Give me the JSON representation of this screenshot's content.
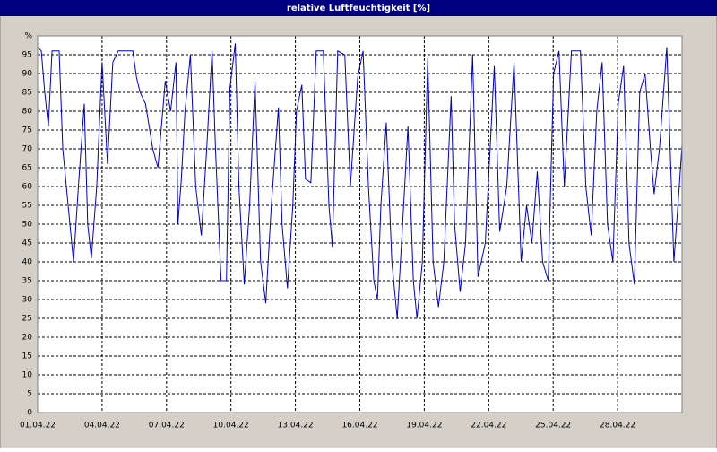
{
  "chart_data": {
    "type": "line",
    "title": "relative Luftfeuchtigkeit [%]",
    "x": [
      0,
      0.17,
      0.33,
      0.5,
      0.67,
      1.0,
      1.17,
      1.42,
      1.67,
      1.92,
      2.17,
      2.33,
      2.5,
      2.75,
      3.0,
      3.25,
      3.5,
      3.75,
      4.43,
      4.6,
      4.77,
      5.02,
      5.36,
      5.6,
      5.94,
      6.19,
      6.44,
      6.53,
      6.69,
      6.86,
      7.11,
      7.36,
      7.62,
      7.87,
      8.12,
      8.28,
      8.54,
      8.79,
      8.95,
      9.2,
      9.37,
      9.62,
      9.87,
      10.12,
      10.38,
      10.62,
      10.88,
      11.21,
      11.38,
      11.63,
      11.88,
      12.05,
      12.3,
      12.47,
      12.72,
      12.97,
      13.3,
      13.56,
      13.72,
      13.97,
      14.3,
      14.56,
      14.9,
      15.15,
      15.4,
      15.65,
      15.82,
      15.98,
      16.23,
      16.49,
      16.74,
      16.99,
      17.24,
      17.49,
      17.66,
      17.91,
      18.16,
      18.41,
      18.66,
      18.91,
      19.25,
      19.41,
      19.67,
      19.92,
      20.25,
      20.5,
      20.84,
      21.26,
      21.51,
      21.84,
      22.18,
      22.51,
      22.76,
      23.01,
      23.26,
      23.51,
      23.77,
      24.02,
      24.27,
      24.52,
      24.85,
      25.27,
      25.52,
      25.77,
      26.03,
      26.28,
      26.53,
      26.78,
      27.03,
      27.28,
      27.53,
      27.78,
      28.03,
      28.28,
      28.53,
      28.7,
      28.95,
      29.29,
      29.62,
      29.87,
      30.0
    ],
    "series": [
      {
        "color": "#0000c0",
        "values": [
          97,
          96,
          85,
          76,
          96,
          96,
          70,
          55,
          40,
          62,
          82,
          50,
          41,
          60,
          93,
          66,
          93,
          96,
          96,
          89,
          85,
          82,
          70,
          65,
          88,
          80,
          93,
          50,
          62,
          80,
          95,
          60,
          47,
          70,
          96,
          70,
          35,
          35,
          86,
          98,
          60,
          34,
          55,
          88,
          40,
          29,
          55,
          81,
          50,
          33,
          55,
          80,
          87,
          62,
          61,
          96,
          96,
          55,
          44,
          96,
          95,
          60,
          89,
          96,
          60,
          35,
          30,
          55,
          77,
          40,
          25,
          50,
          76,
          35,
          25,
          40,
          94,
          40,
          28,
          40,
          84,
          50,
          32,
          45,
          95,
          36,
          45,
          92,
          48,
          60,
          93,
          40,
          55,
          45,
          64,
          40,
          35,
          90,
          96,
          60,
          96,
          96,
          60,
          47,
          80,
          93,
          50,
          40,
          82,
          92,
          45,
          34,
          85,
          90,
          70,
          58,
          70,
          97,
          40,
          60,
          71
        ]
      }
    ],
    "xlim": [
      0,
      30
    ],
    "xticks": [
      {
        "value": 0,
        "label": "01.04.22"
      },
      {
        "value": 3,
        "label": "04.04.22"
      },
      {
        "value": 6,
        "label": "07.04.22"
      },
      {
        "value": 9,
        "label": "10.04.22"
      },
      {
        "value": 12,
        "label": "13.04.22"
      },
      {
        "value": 15,
        "label": "16.04.22"
      },
      {
        "value": 18,
        "label": "19.04.22"
      },
      {
        "value": 21,
        "label": "22.04.22"
      },
      {
        "value": 24,
        "label": "25.04.22"
      },
      {
        "value": 27,
        "label": "28.04.22"
      }
    ],
    "ylim": [
      0,
      100
    ],
    "yticks": [
      0,
      5,
      10,
      15,
      20,
      25,
      30,
      35,
      40,
      45,
      50,
      55,
      60,
      65,
      70,
      75,
      80,
      85,
      90,
      95,
      {
        "value": 100,
        "label": "%"
      }
    ],
    "grid": true
  }
}
